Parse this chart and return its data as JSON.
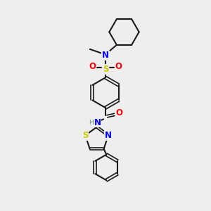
{
  "background_color": "#eeeeee",
  "bond_color": "#1a1a1a",
  "N_color": "#0000ff",
  "O_color": "#ff0000",
  "S_color": "#cccc00",
  "H_color": "#5a8888",
  "figsize": [
    3.0,
    3.0
  ],
  "dpi": 100,
  "xlim": [
    0,
    10
  ],
  "ylim": [
    0,
    10
  ]
}
